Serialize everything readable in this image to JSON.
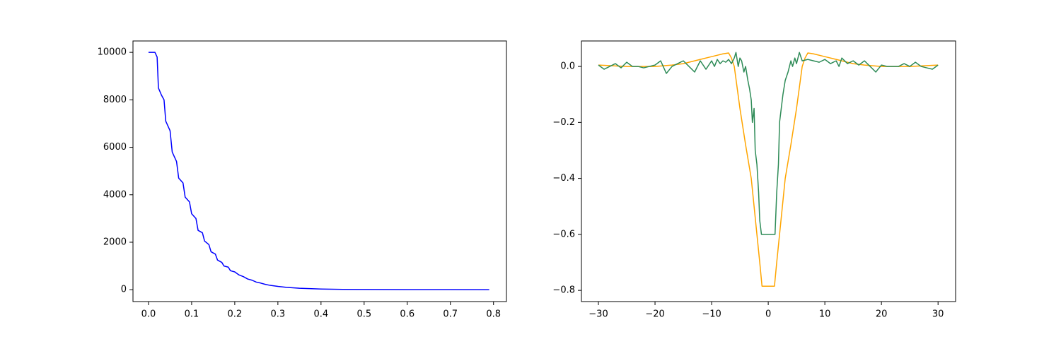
{
  "chart_data": [
    {
      "type": "line",
      "xlim": [
        -0.036,
        0.83
      ],
      "ylim": [
        -500,
        10480
      ],
      "xticks": [
        {
          "value": 0,
          "label": "0.0"
        },
        0.1,
        0.2,
        0.3,
        0.4,
        0.5,
        0.6,
        0.7,
        0.8
      ],
      "yticks": [
        0,
        2000,
        4000,
        6000,
        8000,
        10000
      ],
      "series": [
        {
          "color": "#0000ff",
          "x": [
            0.0,
            0.015,
            0.02,
            0.023,
            0.03,
            0.036,
            0.04,
            0.05,
            0.055,
            0.065,
            0.07,
            0.08,
            0.085,
            0.095,
            0.1,
            0.11,
            0.115,
            0.125,
            0.13,
            0.14,
            0.145,
            0.155,
            0.16,
            0.17,
            0.175,
            0.185,
            0.19,
            0.2,
            0.21,
            0.22,
            0.23,
            0.24,
            0.25,
            0.26,
            0.27,
            0.28,
            0.3,
            0.32,
            0.35,
            0.4,
            0.45,
            0.5,
            0.6,
            0.7,
            0.79
          ],
          "values": [
            10000,
            10000,
            9800,
            8500,
            8200,
            8000,
            7100,
            6700,
            5800,
            5400,
            4700,
            4500,
            3900,
            3700,
            3200,
            3000,
            2500,
            2400,
            2050,
            1900,
            1600,
            1500,
            1250,
            1150,
            1000,
            950,
            800,
            750,
            620,
            550,
            450,
            400,
            320,
            280,
            230,
            190,
            140,
            100,
            60,
            30,
            15,
            8,
            3,
            1,
            0
          ]
        }
      ]
    },
    {
      "type": "line",
      "xlim": [
        -33,
        33.1
      ],
      "ylim": [
        -0.84,
        0.091
      ],
      "xticks": [
        {
          "value": -30,
          "label": "−30"
        },
        {
          "value": -20,
          "label": "−20"
        },
        {
          "value": -10,
          "label": "−10"
        },
        0,
        10,
        20,
        30
      ],
      "yticks": [
        {
          "value": -0.8,
          "label": "−0.8"
        },
        {
          "value": -0.6,
          "label": "−0.6"
        },
        {
          "value": -0.4,
          "label": "−0.4"
        },
        {
          "value": -0.2,
          "label": "−0.2"
        },
        {
          "value": 0,
          "label": "0.0"
        }
      ],
      "series": [
        {
          "color": "#ffa500",
          "x": [
            -30,
            -25,
            -20,
            -17,
            -15,
            -12,
            -10,
            -8,
            -7,
            -6.5,
            -6,
            -5,
            -4,
            -3,
            -2.5,
            -2,
            -1.5,
            -1.1,
            1.1,
            1.5,
            2,
            2.5,
            3,
            4,
            5,
            6,
            6.5,
            7,
            8,
            10,
            12,
            15,
            17,
            20,
            25,
            30
          ],
          "values": [
            0.005,
            0.0,
            0.0,
            0.005,
            0.01,
            0.025,
            0.035,
            0.045,
            0.048,
            0.03,
            0.0,
            -0.15,
            -0.28,
            -0.4,
            -0.5,
            -0.6,
            -0.7,
            -0.785,
            -0.785,
            -0.7,
            -0.6,
            -0.5,
            -0.4,
            -0.28,
            -0.15,
            0.0,
            0.03,
            0.048,
            0.045,
            0.035,
            0.025,
            0.01,
            0.005,
            0.0,
            0.0,
            0.005
          ]
        },
        {
          "color": "#2e8b57",
          "x": [
            -30,
            -29,
            -28,
            -27,
            -26,
            -25,
            -24,
            -23,
            -22,
            -21,
            -20,
            -19,
            -18,
            -17,
            -16,
            -15,
            -14,
            -13,
            -12,
            -11,
            -10,
            -9.5,
            -9,
            -8.5,
            -8,
            -7.5,
            -7,
            -6.5,
            -6,
            -5.7,
            -5.3,
            -5,
            -4.7,
            -4.3,
            -4,
            -3.6,
            -3.3,
            -3,
            -2.8,
            -2.5,
            -2.3,
            -2,
            -1.7,
            -1.5,
            -1.2,
            1.2,
            1.5,
            1.8,
            2,
            2.3,
            2.6,
            3,
            3.5,
            4,
            4.3,
            4.7,
            5,
            5.5,
            6,
            7,
            8,
            9,
            10,
            11,
            12,
            12.5,
            13,
            14,
            15,
            16,
            17,
            18,
            19,
            20,
            21,
            22,
            23,
            24,
            25,
            26,
            27,
            28,
            29,
            30
          ],
          "values": [
            0.005,
            -0.01,
            0.0,
            0.01,
            -0.005,
            0.015,
            0.0,
            0.0,
            -0.005,
            0.0,
            0.005,
            0.02,
            -0.025,
            0.0,
            0.01,
            0.02,
            0.0,
            -0.02,
            0.02,
            -0.01,
            0.02,
            0.0,
            0.025,
            0.01,
            0.02,
            0.015,
            0.025,
            0.01,
            0.03,
            0.05,
            0.0,
            0.03,
            0.02,
            -0.02,
            0.0,
            -0.05,
            -0.08,
            -0.12,
            -0.2,
            -0.15,
            -0.3,
            -0.35,
            -0.45,
            -0.55,
            -0.6,
            -0.6,
            -0.45,
            -0.35,
            -0.2,
            -0.15,
            -0.1,
            -0.05,
            -0.02,
            0.02,
            0.0,
            0.03,
            0.01,
            0.05,
            0.02,
            0.025,
            0.02,
            0.015,
            0.025,
            0.01,
            0.02,
            0.0,
            0.03,
            0.01,
            0.02,
            0.005,
            0.02,
            0.0,
            -0.02,
            0.005,
            0.0,
            0.0,
            0.0,
            0.01,
            0.0,
            0.015,
            0.0,
            -0.005,
            -0.01,
            0.005
          ]
        }
      ]
    }
  ]
}
